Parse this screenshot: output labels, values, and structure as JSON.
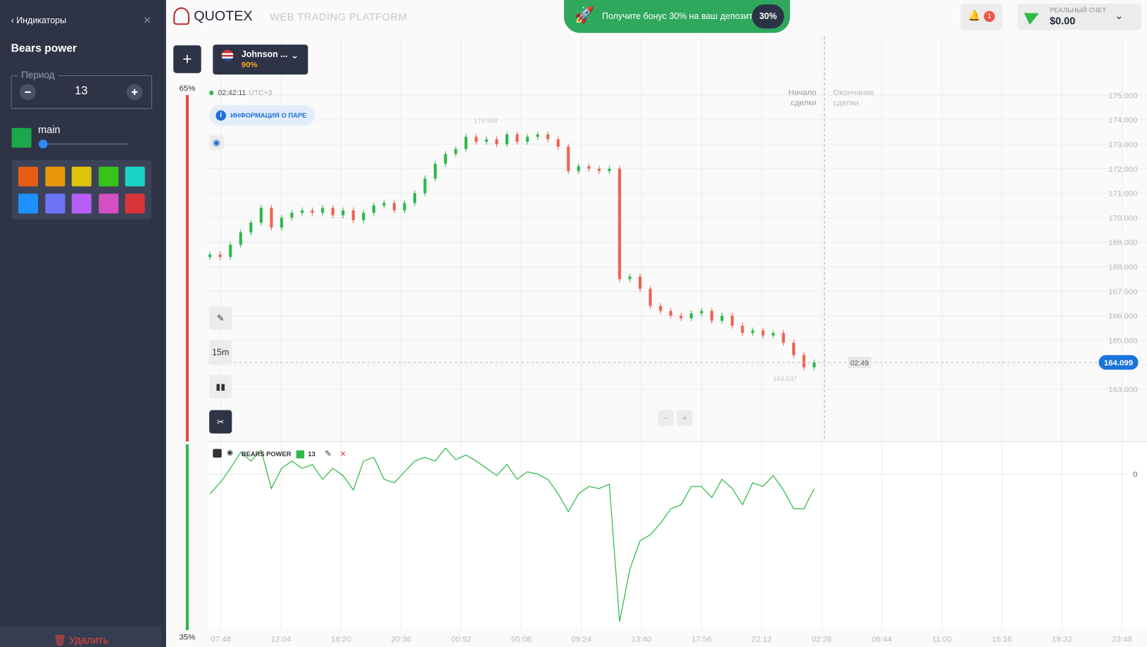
{
  "sidebar": {
    "back": "Индикаторы",
    "title": "Bears power",
    "period_label": "Период",
    "period_value": 13,
    "color_name": "main",
    "main_color": "#1aa84a",
    "palette": [
      "#e85d14",
      "#e8970c",
      "#e0c30b",
      "#36c41a",
      "#1cd4c4",
      "#1e90ff",
      "#6d75f5",
      "#b45ef5",
      "#d44fc4",
      "#d8343a"
    ],
    "delete": "Удалить"
  },
  "header": {
    "logo": "QUOTEX",
    "subtitle": "WEB TRADING PLATFORM",
    "bonus": "Получите бонус 30% на ваш депозит",
    "bonus_badge": "30%",
    "notifications": 1,
    "account_label": "РЕАЛЬНЫЙ СЧЕТ",
    "balance": "$0.00"
  },
  "asset": {
    "name": "Johnson ...",
    "payout": "90%"
  },
  "sentiment": {
    "top": {
      "value": 65,
      "label": "65%"
    },
    "bottom": {
      "value": 35,
      "label": "35%"
    }
  },
  "chart": {
    "time": "02:42:11",
    "timezone": "UTC+3",
    "info": "ИНФОРМАЦИЯ О ПАРЕ",
    "timeframe": "15m",
    "trade_start": "Начало сделки",
    "trade_end": "Окончание сделки",
    "high_label": 173.938,
    "low_label": 163.637,
    "countdown": "02:49",
    "current_price": 164.099,
    "ylim": [
      160.9,
      175.9
    ],
    "yticks": [
      {
        "value": 175,
        "label": "175.000"
      },
      {
        "value": 174,
        "label": "174.000"
      },
      {
        "value": 173,
        "label": "173.000"
      },
      {
        "value": 172,
        "label": "172.000"
      },
      {
        "value": 171,
        "label": "171.000"
      },
      {
        "value": 170,
        "label": "170.000"
      },
      {
        "value": 169,
        "label": "169.000"
      },
      {
        "value": 168,
        "label": "168.000"
      },
      {
        "value": 167,
        "label": "167.000"
      },
      {
        "value": 166,
        "label": "166.000"
      },
      {
        "value": 165,
        "label": "165.000"
      },
      {
        "value": 164,
        "label": "164.000"
      },
      {
        "value": 163,
        "label": "163.000"
      }
    ],
    "xticks": [
      "07:48",
      "12:04",
      "16:20",
      "20:36",
      "00:52",
      "05:08",
      "09:24",
      "13:40",
      "17:56",
      "22:12",
      "02:28",
      "06:44",
      "11:00",
      "15:16",
      "19:32",
      "23:48"
    ],
    "up_color": "#2db84d",
    "down_color": "#f0634f",
    "closes": [
      168.5,
      168.4,
      168.9,
      169.4,
      169.8,
      170.4,
      169.6,
      170.0,
      170.2,
      170.3,
      170.2,
      170.4,
      170.1,
      170.3,
      169.9,
      170.2,
      170.5,
      170.6,
      170.3,
      170.6,
      171.0,
      171.6,
      172.2,
      172.6,
      172.8,
      173.3,
      173.1,
      173.2,
      173.0,
      173.4,
      173.1,
      173.3,
      173.4,
      173.2,
      172.9,
      171.9,
      172.1,
      172.0,
      171.9,
      172.0,
      167.5,
      167.6,
      167.1,
      166.4,
      166.2,
      166.0,
      165.9,
      166.1,
      166.2,
      165.8,
      166.0,
      165.6,
      165.3,
      165.4,
      165.2,
      165.3,
      164.9,
      164.4,
      163.9,
      164.1
    ],
    "indicator": {
      "name": "BEARS POWER",
      "period": 13,
      "color": "#2fb94a",
      "ylim": [
        -5.6,
        1.1
      ],
      "yticks": [
        0
      ],
      "values": [
        -0.68,
        -0.3,
        0.2,
        0.76,
        0.45,
        0.83,
        -0.5,
        0.2,
        0.45,
        0.2,
        0.33,
        -0.18,
        0.2,
        -0.05,
        -0.55,
        0.45,
        0.58,
        -0.18,
        -0.3,
        0.08,
        0.45,
        0.58,
        0.45,
        0.9,
        0.5,
        0.66,
        0.45,
        0.2,
        -0.05,
        0.33,
        -0.18,
        0.08,
        0,
        -0.18,
        -0.68,
        -1.3,
        -0.68,
        -0.43,
        -0.5,
        -0.35,
        -5.1,
        -3.3,
        -2.3,
        -2.1,
        -1.7,
        -1.2,
        -1.06,
        -0.43,
        -0.43,
        -0.81,
        -0.18,
        -0.5,
        -1.06,
        -0.3,
        -0.43,
        -0.05,
        -0.55,
        -1.2,
        -1.2,
        -0.5
      ]
    }
  }
}
